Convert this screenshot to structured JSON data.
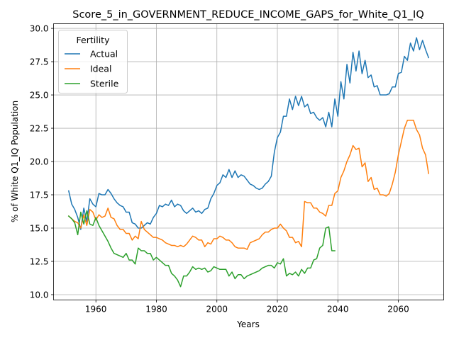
{
  "chart_data": {
    "type": "line",
    "title": "Score_5_in_GOVERNMENT_REDUCE_INCOME_GAPS_for_White_Q1_IQ",
    "xlabel": "Years",
    "ylabel": "% of White Q1_IQ Population",
    "xlim": [
      1946,
      2075
    ],
    "ylim": [
      9.6,
      30.35
    ],
    "x_ticks": [
      1960,
      1980,
      2000,
      2020,
      2040,
      2060
    ],
    "x_tick_labels": [
      "1960",
      "1980",
      "2000",
      "2020",
      "2040",
      "2060"
    ],
    "y_ticks": [
      10.0,
      12.5,
      15.0,
      17.5,
      20.0,
      22.5,
      25.0,
      27.5,
      30.0
    ],
    "y_tick_labels": [
      "10.0",
      "12.5",
      "15.0",
      "17.5",
      "20.0",
      "22.5",
      "25.0",
      "27.5",
      "30.0"
    ],
    "grid": true,
    "legend": {
      "title": "Fertility",
      "position": "upper-left"
    },
    "series": [
      {
        "name": "Actual",
        "color": "#1f77b4",
        "x": [
          1951,
          1952,
          1953,
          1954,
          1955,
          1956,
          1957,
          1958,
          1959,
          1960,
          1961,
          1962,
          1963,
          1964,
          1965,
          1966,
          1967,
          1968,
          1969,
          1970,
          1971,
          1972,
          1973,
          1974,
          1975,
          1976,
          1977,
          1978,
          1979,
          1980,
          1981,
          1982,
          1983,
          1984,
          1985,
          1986,
          1987,
          1988,
          1989,
          1990,
          1991,
          1992,
          1993,
          1994,
          1995,
          1996,
          1997,
          1998,
          1999,
          2000,
          2001,
          2002,
          2003,
          2004,
          2005,
          2006,
          2007,
          2008,
          2009,
          2010,
          2011,
          2012,
          2013,
          2014,
          2015,
          2016,
          2017,
          2018,
          2019,
          2020,
          2021,
          2022,
          2023,
          2024,
          2025,
          2026,
          2027,
          2028,
          2029,
          2030,
          2031,
          2032,
          2033,
          2034,
          2035,
          2036,
          2037,
          2038,
          2039,
          2040,
          2041,
          2042,
          2043,
          2044,
          2045,
          2046,
          2047,
          2048,
          2049,
          2050,
          2051,
          2052,
          2053,
          2054,
          2055,
          2056,
          2057,
          2058,
          2059,
          2060,
          2061,
          2062,
          2063,
          2064,
          2065,
          2066,
          2067,
          2068,
          2069,
          2070
        ],
        "y": [
          17.8,
          16.8,
          16.4,
          15.8,
          14.9,
          16.5,
          15.5,
          17.2,
          16.8,
          16.6,
          17.6,
          17.5,
          17.5,
          17.9,
          17.6,
          17.2,
          16.9,
          16.7,
          16.6,
          16.2,
          16.2,
          15.4,
          15.3,
          15.0,
          15.0,
          15.2,
          15.4,
          15.3,
          15.8,
          16.1,
          16.7,
          16.6,
          16.8,
          16.7,
          17.1,
          16.6,
          16.8,
          16.7,
          16.3,
          16.1,
          16.3,
          16.5,
          16.2,
          16.3,
          16.1,
          16.4,
          16.5,
          17.2,
          17.6,
          18.2,
          18.4,
          19.0,
          18.8,
          19.4,
          18.8,
          19.3,
          18.8,
          19.0,
          18.9,
          18.6,
          18.3,
          18.2,
          18.0,
          17.9,
          18.0,
          18.3,
          18.5,
          18.9,
          20.7,
          21.8,
          22.2,
          23.4,
          23.4,
          24.7,
          23.9,
          24.9,
          24.2,
          24.9,
          24.1,
          24.3,
          23.6,
          23.7,
          23.3,
          23.1,
          23.3,
          22.6,
          23.7,
          22.6,
          24.7,
          23.4,
          26.0,
          24.7,
          27.3,
          25.9,
          28.2,
          26.8,
          28.3,
          26.6,
          27.6,
          26.3,
          26.5,
          25.6,
          25.7,
          25.0,
          25.0,
          25.0,
          25.1,
          25.6,
          25.6,
          26.6,
          26.7,
          27.9,
          27.6,
          28.9,
          28.3,
          29.3,
          28.4,
          29.1,
          28.4,
          27.8
        ]
      },
      {
        "name": "Ideal",
        "color": "#ff7f0e",
        "x": [
          1951,
          1952,
          1953,
          1954,
          1955,
          1956,
          1957,
          1958,
          1959,
          1960,
          1961,
          1962,
          1963,
          1964,
          1965,
          1966,
          1967,
          1968,
          1969,
          1970,
          1971,
          1972,
          1973,
          1974,
          1975,
          1976,
          1977,
          1978,
          1979,
          1980,
          1981,
          1982,
          1983,
          1984,
          1985,
          1986,
          1987,
          1988,
          1989,
          1990,
          1991,
          1992,
          1993,
          1994,
          1995,
          1996,
          1997,
          1998,
          1999,
          2000,
          2001,
          2002,
          2003,
          2004,
          2005,
          2006,
          2007,
          2008,
          2009,
          2010,
          2011,
          2012,
          2013,
          2014,
          2015,
          2016,
          2017,
          2018,
          2019,
          2020,
          2021,
          2022,
          2023,
          2024,
          2025,
          2026,
          2027,
          2028,
          2029,
          2030,
          2031,
          2032,
          2033,
          2034,
          2035,
          2036,
          2037,
          2038,
          2039,
          2040,
          2041,
          2042,
          2043,
          2044,
          2045,
          2046,
          2047,
          2048,
          2049,
          2050,
          2051,
          2052,
          2053,
          2054,
          2055,
          2056,
          2057,
          2058,
          2059,
          2060,
          2061,
          2062,
          2063,
          2064,
          2065,
          2066,
          2067,
          2068,
          2069,
          2070
        ],
        "y": [
          15.9,
          15.7,
          15.5,
          15.4,
          15.0,
          16.0,
          15.2,
          16.4,
          16.2,
          15.6,
          16.0,
          15.8,
          15.9,
          16.5,
          15.8,
          15.7,
          15.2,
          14.9,
          14.9,
          14.6,
          14.6,
          14.1,
          14.4,
          14.2,
          15.5,
          14.9,
          14.7,
          14.5,
          14.3,
          14.3,
          14.2,
          14.1,
          13.9,
          13.8,
          13.7,
          13.7,
          13.6,
          13.7,
          13.6,
          13.8,
          14.1,
          14.4,
          14.3,
          14.1,
          14.1,
          13.6,
          13.9,
          13.8,
          14.2,
          14.2,
          14.4,
          14.3,
          14.1,
          14.1,
          13.9,
          13.6,
          13.5,
          13.5,
          13.5,
          13.4,
          13.9,
          14.0,
          14.1,
          14.2,
          14.5,
          14.7,
          14.7,
          14.9,
          15.0,
          15.0,
          15.3,
          15.0,
          14.8,
          14.3,
          14.3,
          13.9,
          14.0,
          13.6,
          17.0,
          16.9,
          16.9,
          16.5,
          16.5,
          16.2,
          16.1,
          15.9,
          16.7,
          16.7,
          17.6,
          17.8,
          18.8,
          19.3,
          20.0,
          20.5,
          21.2,
          20.9,
          21.0,
          19.6,
          19.9,
          18.5,
          18.8,
          17.9,
          18.0,
          17.5,
          17.5,
          17.4,
          17.6,
          18.3,
          19.2,
          20.5,
          21.5,
          22.5,
          23.1,
          23.1,
          23.1,
          22.4,
          22.0,
          21.0,
          20.5,
          19.1
        ]
      },
      {
        "name": "Sterile",
        "color": "#2ca02c",
        "x": [
          1951,
          1952,
          1953,
          1954,
          1955,
          1956,
          1957,
          1958,
          1959,
          1960,
          1961,
          1962,
          1963,
          1964,
          1965,
          1966,
          1967,
          1968,
          1969,
          1970,
          1971,
          1972,
          1973,
          1974,
          1975,
          1976,
          1977,
          1978,
          1979,
          1980,
          1981,
          1982,
          1983,
          1984,
          1985,
          1986,
          1987,
          1988,
          1989,
          1990,
          1991,
          1992,
          1993,
          1994,
          1995,
          1996,
          1997,
          1998,
          1999,
          2000,
          2001,
          2002,
          2003,
          2004,
          2005,
          2006,
          2007,
          2008,
          2009,
          2010,
          2011,
          2012,
          2013,
          2014,
          2015,
          2016,
          2017,
          2018,
          2019,
          2020,
          2021,
          2022,
          2023,
          2024,
          2025,
          2026,
          2027,
          2028,
          2029,
          2030,
          2031,
          2032,
          2033,
          2034,
          2035,
          2036,
          2037,
          2038,
          2039
        ],
        "y": [
          15.9,
          15.7,
          15.4,
          14.5,
          16.2,
          15.3,
          16.3,
          15.3,
          15.2,
          15.8,
          15.2,
          14.8,
          14.4,
          14.0,
          13.5,
          13.1,
          13.0,
          12.9,
          12.8,
          13.1,
          12.6,
          12.6,
          12.3,
          13.5,
          13.3,
          13.3,
          13.1,
          13.1,
          12.6,
          12.8,
          12.6,
          12.4,
          12.2,
          12.2,
          11.6,
          11.4,
          11.1,
          10.6,
          11.4,
          11.4,
          11.7,
          12.1,
          11.9,
          12.0,
          11.9,
          12.0,
          11.7,
          11.8,
          12.1,
          12.0,
          11.9,
          11.9,
          11.9,
          11.4,
          11.7,
          11.2,
          11.5,
          11.5,
          11.2,
          11.4,
          11.5,
          11.6,
          11.7,
          11.8,
          12.0,
          12.1,
          12.2,
          12.2,
          12.0,
          12.4,
          12.3,
          12.7,
          11.4,
          11.6,
          11.5,
          11.7,
          11.4,
          11.9,
          11.6,
          12.0,
          12.0,
          12.6,
          12.7,
          13.5,
          13.7,
          15.0,
          15.1,
          13.3,
          13.3
        ]
      }
    ]
  }
}
